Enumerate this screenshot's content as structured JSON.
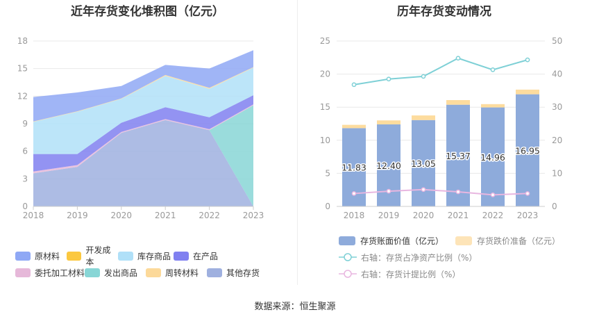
{
  "left_title": "近年存货变化堆积图（亿元）",
  "right_title": "历年存货变动情况",
  "source": "数据来源：恒生聚源",
  "chart_data": [
    {
      "type": "area",
      "stacked": true,
      "title": "近年存货变化堆积图（亿元）",
      "x": [
        "2018",
        "2019",
        "2020",
        "2021",
        "2022",
        "2023"
      ],
      "y_ticks": [
        "0",
        "3",
        "6",
        "9",
        "12",
        "15",
        "18"
      ],
      "ylim": [
        0,
        18
      ],
      "grid": true,
      "legend_position": "bottom",
      "series": [
        {
          "name": "其他存货",
          "color": "#9fb0df",
          "values": [
            3.6,
            4.3,
            8.0,
            9.4,
            8.3,
            0
          ]
        },
        {
          "name": "发出商品",
          "color": "#88d6d6",
          "values": [
            0,
            0,
            0,
            0,
            0,
            11.0
          ]
        },
        {
          "name": "委托加工材料",
          "color": "#e6b8d9",
          "values": [
            0.2,
            0.2,
            0.1,
            0.1,
            0.1,
            0.1
          ]
        },
        {
          "name": "在产品",
          "color": "#8080f0",
          "values": [
            1.9,
            1.2,
            1.0,
            1.3,
            1.3,
            1.0
          ]
        },
        {
          "name": "库存商品",
          "color": "#b0e0f8",
          "values": [
            3.5,
            4.6,
            2.6,
            3.4,
            3.1,
            3.0
          ]
        },
        {
          "name": "周转材料",
          "color": "#fcd99a",
          "values": [
            0.05,
            0.05,
            0.05,
            0.1,
            0.1,
            0.05
          ]
        },
        {
          "name": "开发成本",
          "color": "#fbc840",
          "values": [
            0,
            0,
            0,
            0,
            0,
            0
          ]
        },
        {
          "name": "原材料",
          "color": "#8fa8f5",
          "values": [
            2.65,
            2.05,
            1.35,
            1.1,
            2.1,
            1.85
          ]
        }
      ],
      "legend_order": [
        "原材料",
        "开发成本",
        "库存商品",
        "在产品",
        "委托加工材料",
        "发出商品",
        "周转材料",
        "其他存货"
      ]
    },
    {
      "type": "bar",
      "stacked": true,
      "title": "历年存货变动情况",
      "categories": [
        "2018",
        "2019",
        "2020",
        "2021",
        "2022",
        "2023"
      ],
      "y_left_ticks": [
        "0",
        "5",
        "10",
        "15",
        "20",
        "25"
      ],
      "y_right_ticks": [
        "0",
        "10",
        "20",
        "30",
        "40",
        "50"
      ],
      "ylim_left": [
        0,
        25
      ],
      "ylim_right": [
        0,
        50
      ],
      "grid": true,
      "legend_position": "bottom",
      "series": [
        {
          "name": "存货账面价值（亿元）",
          "axis": "left",
          "color": "#8eabdb",
          "values": [
            11.83,
            12.4,
            13.05,
            15.37,
            14.96,
            16.95
          ],
          "labels": [
            "11.83",
            "12.40",
            "13.05",
            "15.37",
            "14.96",
            "16.95"
          ]
        },
        {
          "name": "存货跌价准备（亿元）",
          "axis": "left",
          "color": "#fddc9e",
          "values": [
            0.5,
            0.6,
            0.7,
            0.7,
            0.5,
            0.7
          ]
        },
        {
          "name": "右轴：存货占净资产比例（%）",
          "axis": "right",
          "type": "line",
          "color": "#7ed0d6",
          "values": [
            36.8,
            38.5,
            39.3,
            44.8,
            41.3,
            44.3
          ]
        },
        {
          "name": "右轴：存货计提比例（%）",
          "axis": "right",
          "type": "line",
          "color": "#e8b6e0",
          "values": [
            3.9,
            4.6,
            5.1,
            4.4,
            3.5,
            3.9
          ]
        }
      ]
    }
  ]
}
